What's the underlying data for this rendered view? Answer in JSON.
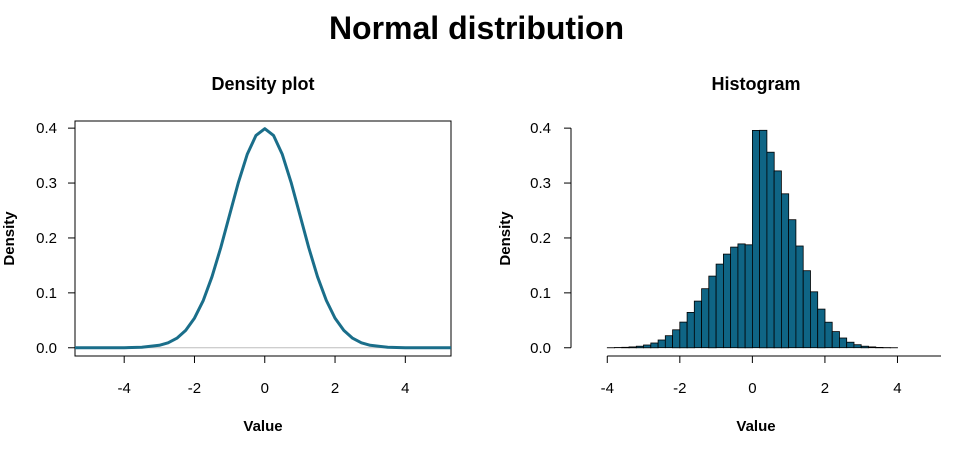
{
  "title": "Normal distribution",
  "chart_data": [
    {
      "type": "line",
      "title": "Density plot",
      "xlabel": "Value",
      "ylabel": "Density",
      "xlim": [
        -5.4,
        5.3
      ],
      "ylim": [
        -0.015,
        0.413
      ],
      "x_ticks": [
        -4,
        -2,
        0,
        2,
        4
      ],
      "x_tick_labels": [
        "-4",
        "-2",
        "0",
        "2",
        "4"
      ],
      "y_ticks": [
        0.0,
        0.1,
        0.2,
        0.3,
        0.4
      ],
      "y_tick_labels": [
        "0.0",
        "0.1",
        "0.2",
        "0.3",
        "0.4"
      ],
      "series": [
        {
          "name": "density",
          "x": [
            -5.4,
            -5.0,
            -4.5,
            -4.0,
            -3.5,
            -3.0,
            -2.75,
            -2.5,
            -2.25,
            -2.0,
            -1.75,
            -1.5,
            -1.25,
            -1.0,
            -0.75,
            -0.5,
            -0.25,
            0.0,
            0.25,
            0.5,
            0.75,
            1.0,
            1.25,
            1.5,
            1.75,
            2.0,
            2.25,
            2.5,
            2.75,
            3.0,
            3.5,
            4.0,
            4.5,
            5.0,
            5.3
          ],
          "values": [
            0.0,
            0.0,
            0.0,
            0.0001,
            0.0009,
            0.0044,
            0.0091,
            0.0175,
            0.0317,
            0.054,
            0.0863,
            0.1295,
            0.1826,
            0.242,
            0.3011,
            0.3521,
            0.3867,
            0.3989,
            0.3867,
            0.3521,
            0.3011,
            0.242,
            0.1826,
            0.1295,
            0.0863,
            0.054,
            0.0317,
            0.0175,
            0.0091,
            0.0044,
            0.0009,
            0.0001,
            0.0,
            0.0,
            0.0
          ]
        }
      ],
      "color": "#1a6e8a",
      "baseline_color": "#bebebe"
    },
    {
      "type": "bar",
      "title": "Histogram",
      "xlabel": "Value",
      "ylabel": "Density",
      "xlim": [
        -5.0,
        5.2
      ],
      "ylim": [
        -0.015,
        0.413
      ],
      "x_ticks": [
        -4,
        -2,
        0,
        2,
        4
      ],
      "x_tick_labels": [
        "-4",
        "-2",
        "0",
        "2",
        "4"
      ],
      "y_ticks": [
        0.0,
        0.1,
        0.2,
        0.3,
        0.4
      ],
      "y_tick_labels": [
        "0.0",
        "0.1",
        "0.2",
        "0.3",
        "0.4"
      ],
      "bin_width": 0.2,
      "bin_starts": [
        -4.0,
        -3.8,
        -3.6,
        -3.4,
        -3.2,
        -3.0,
        -2.8,
        -2.6,
        -2.4,
        -2.2,
        -2.0,
        -1.8,
        -1.6,
        -1.4,
        -1.2,
        -1.0,
        -0.8,
        -0.6,
        -0.4,
        -0.2,
        0.0,
        0.2,
        0.4,
        0.6,
        0.8,
        1.0,
        1.2,
        1.4,
        1.6,
        1.8,
        2.0,
        2.2,
        2.4,
        2.6,
        2.8,
        3.0,
        3.2,
        3.4,
        3.6,
        3.8
      ],
      "values": [
        0.0002,
        0.0004,
        0.0009,
        0.0016,
        0.0029,
        0.0051,
        0.0087,
        0.0141,
        0.0219,
        0.0327,
        0.0468,
        0.0644,
        0.0849,
        0.1075,
        0.1306,
        0.1523,
        0.1705,
        0.1833,
        0.1892,
        0.1876,
        0.3958,
        0.3961,
        0.3562,
        0.3221,
        0.2804,
        0.2332,
        0.1853,
        0.1403,
        0.1019,
        0.0705,
        0.0465,
        0.0294,
        0.0177,
        0.0101,
        0.0055,
        0.0029,
        0.0015,
        0.0007,
        0.0003,
        0.0001
      ],
      "fill_color": "#0f6585",
      "edge_color": "#000000"
    }
  ]
}
